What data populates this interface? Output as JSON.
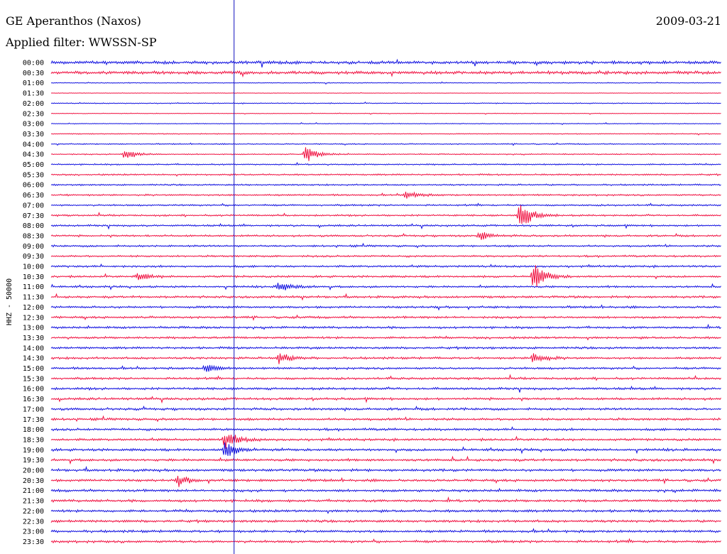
{
  "header": {
    "station": "GE Aperanthos (Naxos)",
    "filter": "Applied filter: WWSSN-SP",
    "date": "2009-03-21"
  },
  "chart_data": {
    "type": "line",
    "title": "GE Aperanthos (Naxos)",
    "subtitle": "Applied filter: WWSSN-SP",
    "ylabel": "HHZ - 50000",
    "xlabel": "",
    "colors": {
      "even_hour": "#1010e0",
      "half_hour": "#f01040",
      "marker": "#1010c0"
    },
    "rows": [
      "00:00",
      "00:30",
      "01:00",
      "01:30",
      "02:00",
      "02:30",
      "03:00",
      "03:30",
      "04:00",
      "04:30",
      "05:00",
      "05:30",
      "06:00",
      "06:30",
      "07:00",
      "07:30",
      "08:00",
      "08:30",
      "09:00",
      "09:30",
      "10:00",
      "10:30",
      "11:00",
      "11:30",
      "12:00",
      "12:30",
      "13:00",
      "13:30",
      "14:00",
      "14:30",
      "15:00",
      "15:30",
      "16:00",
      "16:30",
      "17:00",
      "17:30",
      "18:00",
      "18:30",
      "19:00",
      "19:30",
      "20:00",
      "20:30",
      "21:00",
      "21:30",
      "22:00",
      "22:30",
      "23:00",
      "23:30"
    ],
    "noise_level": [
      1.0,
      1.0,
      0.25,
      0.15,
      0.3,
      0.2,
      0.25,
      0.3,
      0.35,
      0.35,
      0.45,
      0.5,
      0.5,
      0.55,
      0.55,
      0.55,
      0.6,
      0.6,
      0.6,
      0.6,
      0.65,
      0.65,
      0.65,
      0.7,
      0.7,
      0.7,
      0.7,
      0.7,
      0.7,
      0.7,
      0.7,
      0.7,
      0.75,
      0.75,
      0.75,
      0.75,
      0.75,
      0.75,
      0.8,
      0.8,
      0.8,
      0.8,
      0.8,
      0.8,
      0.8,
      0.8,
      0.8,
      0.8
    ],
    "events": [
      {
        "row": 9,
        "t": 0.11,
        "amp": 8
      },
      {
        "row": 9,
        "t": 0.38,
        "amp": 12
      },
      {
        "row": 13,
        "t": 0.53,
        "amp": 6
      },
      {
        "row": 15,
        "t": 0.7,
        "amp": 22
      },
      {
        "row": 17,
        "t": 0.64,
        "amp": 6
      },
      {
        "row": 21,
        "t": 0.72,
        "amp": 20
      },
      {
        "row": 21,
        "t": 0.13,
        "amp": 6
      },
      {
        "row": 22,
        "t": 0.34,
        "amp": 8
      },
      {
        "row": 29,
        "t": 0.34,
        "amp": 8
      },
      {
        "row": 29,
        "t": 0.72,
        "amp": 8
      },
      {
        "row": 37,
        "t": 0.26,
        "amp": 14
      },
      {
        "row": 38,
        "t": 0.26,
        "amp": 12
      },
      {
        "row": 41,
        "t": 0.19,
        "amp": 7
      },
      {
        "row": 30,
        "t": 0.23,
        "amp": 6
      }
    ],
    "marker_fraction": 0.273
  }
}
